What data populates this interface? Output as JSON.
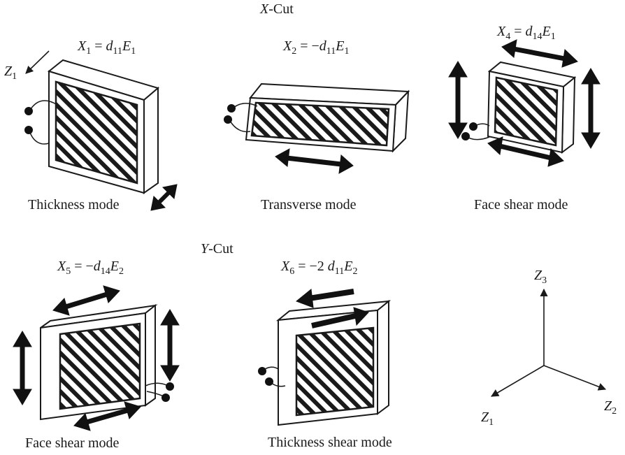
{
  "x_cut": {
    "heading": {
      "var": "X",
      "rest": "-Cut"
    },
    "thickness": {
      "eq": {
        "lhs": "X",
        "lhs_sub": "1",
        "rhs": "d",
        "rhs_sub": "11",
        "field": "E",
        "field_sub": "1",
        "sign": "",
        "coef": ""
      },
      "caption": "Thickness mode",
      "axis": {
        "var": "Z",
        "sub": "1"
      }
    },
    "transverse": {
      "eq": {
        "lhs": "X",
        "lhs_sub": "2",
        "rhs": "d",
        "rhs_sub": "11",
        "field": "E",
        "field_sub": "1",
        "sign": "−",
        "coef": ""
      },
      "caption": "Transverse mode"
    },
    "face_shear": {
      "eq": {
        "lhs": "X",
        "lhs_sub": "4",
        "rhs": "d",
        "rhs_sub": "14",
        "field": "E",
        "field_sub": "1",
        "sign": "",
        "coef": ""
      },
      "caption": "Face shear mode"
    }
  },
  "y_cut": {
    "heading": {
      "var": "Y",
      "rest": "-Cut"
    },
    "face_shear": {
      "eq": {
        "lhs": "X",
        "lhs_sub": "5",
        "rhs": "d",
        "rhs_sub": "14",
        "field": "E",
        "field_sub": "2",
        "sign": "−",
        "coef": ""
      },
      "caption": "Face shear mode"
    },
    "thickness_shear": {
      "eq": {
        "lhs": "X",
        "lhs_sub": "6",
        "rhs": "d",
        "rhs_sub": "11",
        "field": "E",
        "field_sub": "2",
        "sign": "−",
        "coef": "2 "
      },
      "caption": "Thickness shear mode"
    }
  },
  "axes": {
    "z3": {
      "var": "Z",
      "sub": "3"
    },
    "z1": {
      "var": "Z",
      "sub": "1"
    },
    "z2": {
      "var": "Z",
      "sub": "2"
    }
  },
  "colors": {
    "ink": "#1a1a1a",
    "arrow": "#111111",
    "paper": "#ffffff"
  }
}
